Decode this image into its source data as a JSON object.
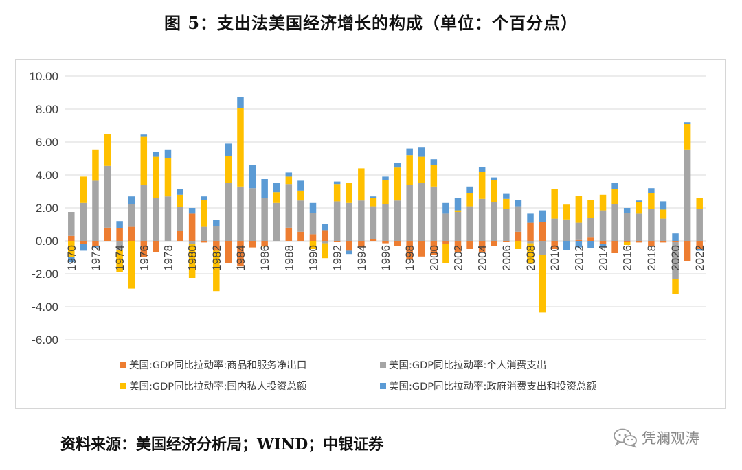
{
  "title": "图 5：支出法美国经济增长的构成（单位：个百分点）",
  "source": "资料来源：美国经济分析局；WIND；中银证券",
  "watermark": {
    "icon": "wechat-icon",
    "text": "凭澜观涛"
  },
  "chart_data": {
    "type": "bar",
    "stacked": true,
    "title": "",
    "xlabel": "",
    "ylabel": "",
    "ylim": [
      -6,
      10
    ],
    "yticks": [
      -6,
      -4,
      -2,
      0,
      2,
      4,
      6,
      8,
      10
    ],
    "y_tick_labels": [
      "-6.00",
      "-4.00",
      "-2.00",
      "0.00",
      "2.00",
      "4.00",
      "6.00",
      "8.00",
      "10.00"
    ],
    "grid": true,
    "legend_position": "bottom",
    "x_tick_labels": [
      "1970",
      "1972",
      "1974",
      "1976",
      "1978",
      "1980",
      "1982",
      "1984",
      "1986",
      "1988",
      "1990",
      "1992",
      "1994",
      "1996",
      "1998",
      "2000",
      "2002",
      "2004",
      "2006",
      "2008",
      "2010",
      "2012",
      "2014",
      "2016",
      "2018",
      "2020",
      "2022"
    ],
    "categories": [
      "1970",
      "1971",
      "1972",
      "1973",
      "1974",
      "1975",
      "1976",
      "1977",
      "1978",
      "1979",
      "1980",
      "1981",
      "1982",
      "1983",
      "1984",
      "1985",
      "1986",
      "1987",
      "1988",
      "1989",
      "1990",
      "1991",
      "1992",
      "1993",
      "1994",
      "1995",
      "1996",
      "1997",
      "1998",
      "1999",
      "2000",
      "2001",
      "2002",
      "2003",
      "2004",
      "2005",
      "2006",
      "2007",
      "2008",
      "2009",
      "2010",
      "2011",
      "2012",
      "2013",
      "2014",
      "2015",
      "2016",
      "2017",
      "2018",
      "2019",
      "2020",
      "2021",
      "2022"
    ],
    "series": [
      {
        "name": "美国:GDP同比拉动率:商品和服务净出口",
        "color": "#ED7D31",
        "values": [
          0.3,
          -0.2,
          -0.3,
          0.8,
          0.75,
          0.85,
          -1.0,
          -0.7,
          0.0,
          0.6,
          1.65,
          -0.1,
          -0.6,
          -1.35,
          -1.55,
          -0.4,
          -0.3,
          0.0,
          0.8,
          0.55,
          0.4,
          0.65,
          -0.05,
          -0.6,
          -0.4,
          0.1,
          -0.15,
          -0.3,
          -1.15,
          -0.95,
          -0.85,
          -0.2,
          -0.7,
          -0.5,
          -0.7,
          -0.3,
          -0.05,
          0.55,
          1.1,
          1.15,
          -0.5,
          0.0,
          0.05,
          0.2,
          -0.2,
          -0.75,
          -0.05,
          -0.1,
          -0.3,
          -0.1,
          -0.05,
          -1.25,
          -0.5
        ]
      },
      {
        "name": "美国:GDP同比拉动率:个人消费支出",
        "color": "#A5A5A5",
        "values": [
          1.45,
          2.3,
          3.65,
          3.75,
          -0.55,
          1.4,
          3.4,
          2.6,
          2.7,
          1.45,
          -0.2,
          0.85,
          0.9,
          3.5,
          3.3,
          3.2,
          2.6,
          2.3,
          2.65,
          1.9,
          1.3,
          -0.15,
          2.4,
          2.3,
          2.45,
          2.0,
          2.25,
          2.45,
          3.4,
          3.5,
          3.3,
          1.65,
          1.75,
          2.1,
          2.55,
          2.35,
          1.95,
          1.55,
          -0.15,
          -0.85,
          1.35,
          1.3,
          1.05,
          1.2,
          1.85,
          2.25,
          1.7,
          1.65,
          1.95,
          1.35,
          -2.25,
          5.55,
          1.95
        ]
      },
      {
        "name": "美国:GDP同比拉动率:国内私人投资总额",
        "color": "#FFC000",
        "values": [
          -1.0,
          1.6,
          1.9,
          1.95,
          -1.35,
          -2.9,
          2.95,
          2.5,
          2.3,
          0.75,
          -2.05,
          1.65,
          -2.45,
          1.65,
          4.75,
          0.0,
          -0.05,
          0.65,
          0.45,
          0.6,
          -0.5,
          -0.9,
          1.05,
          1.2,
          1.95,
          0.5,
          1.45,
          2.0,
          1.8,
          1.6,
          1.3,
          -1.15,
          0.1,
          0.8,
          1.65,
          1.35,
          0.6,
          -0.5,
          -1.25,
          -3.5,
          1.8,
          0.9,
          1.65,
          1.1,
          0.95,
          0.9,
          -0.2,
          0.7,
          0.95,
          0.55,
          -0.95,
          1.55,
          0.65
        ]
      },
      {
        "name": "美国:GDP同比拉动率:政府消费支出和投资总额",
        "color": "#5B9BD5",
        "values": [
          -0.3,
          -0.4,
          -0.1,
          0.0,
          0.45,
          0.45,
          0.1,
          0.3,
          0.55,
          0.35,
          0.35,
          0.2,
          0.35,
          0.75,
          0.7,
          1.4,
          1.15,
          0.55,
          0.25,
          0.6,
          0.6,
          0.35,
          0.15,
          -0.2,
          0.0,
          0.1,
          0.2,
          0.3,
          0.4,
          0.6,
          0.35,
          0.65,
          0.75,
          0.4,
          0.3,
          0.15,
          0.3,
          0.4,
          0.55,
          0.7,
          0.0,
          -0.55,
          -0.4,
          -0.45,
          -0.2,
          0.35,
          0.3,
          0.1,
          0.3,
          0.5,
          0.45,
          0.1,
          -0.1
        ]
      }
    ]
  }
}
